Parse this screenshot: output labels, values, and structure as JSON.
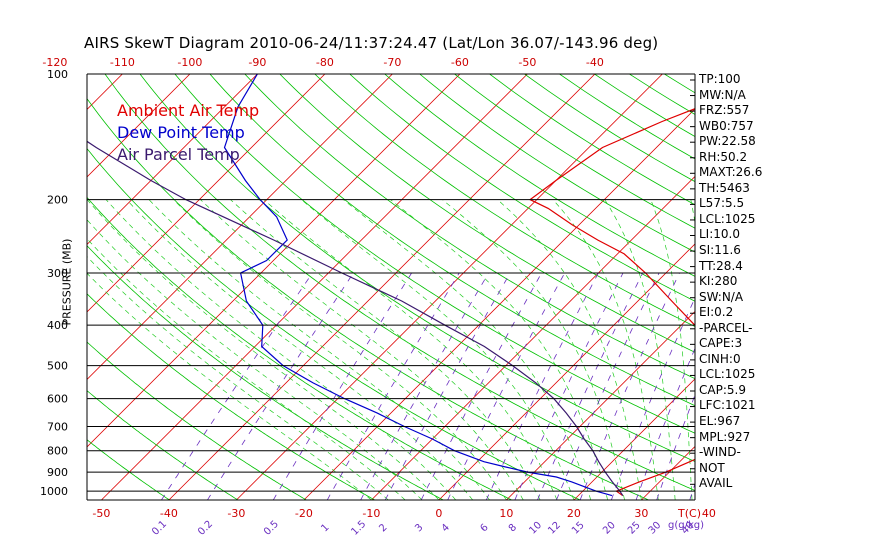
{
  "title": "AIRS SkewT Diagram 2010-06-24/11:37:24.47 (Lat/Lon 36.07/-143.96 deg)",
  "colors": {
    "ambient": "#e00000",
    "dewpoint": "#0000cc",
    "parcel": "#3a1a6e",
    "isotherm": "#dd0000",
    "dry_adiabat": "#00c000",
    "moist_adiabat": "#22cc22",
    "mixing_ratio": "#6a2fc0",
    "axis_text_red": "#cc0000",
    "axis_text_purple": "#6a2fc0"
  },
  "legend": [
    {
      "label": "Ambient Air Temp",
      "color": "#e00000"
    },
    {
      "label": "Dew Point Temp",
      "color": "#0000cc"
    },
    {
      "label": "Air Parcel Temp",
      "color": "#3a1a6e"
    }
  ],
  "stats": [
    "TP:100",
    "MW:N/A",
    "FRZ:557",
    "WB0:757",
    "PW:22.58",
    "RH:50.2",
    "MAXT:26.6",
    "TH:5463",
    "L57:5.5",
    "LCL:1025",
    "LI:10.0",
    "SI:11.6",
    "TT:28.4",
    "KI:280",
    "SW:N/A",
    "EI:0.2",
    "-PARCEL-",
    "CAPE:3",
    "CINH:0",
    "LCL:1025",
    "CAP:5.9",
    "LFC:1021",
    "EL:967",
    "MPL:927",
    "-WIND-",
    "NOT",
    "AVAIL"
  ],
  "chart_data": {
    "type": "line",
    "title": "AIRS SkewT Diagram 2010-06-24/11:37:24.47 (Lat/Lon 36.07/-143.96 deg)",
    "ylabel": "PRESSURE (MB)",
    "xlabel": "T(C)",
    "y_scale": "log",
    "ylim": [
      1050,
      100
    ],
    "y_ticks": [
      1000,
      900,
      800,
      700,
      600,
      500,
      400,
      300,
      200,
      100
    ],
    "top_ticks": [
      "-120",
      "-110",
      "-100",
      "-90",
      "-80",
      "-70",
      "-60",
      "-50",
      "-40"
    ],
    "bottom_temp_ticks": [
      "-50",
      "-40",
      "-30",
      "-20",
      "-10",
      "0",
      "10",
      "20",
      "30",
      "40"
    ],
    "bottom_temp_unit": "T(C)",
    "mixing_ratio_ticks": [
      "0.1",
      "0.2",
      "0.5",
      "1",
      "1.5",
      "2",
      "3",
      "4",
      "6",
      "8",
      "10",
      "12",
      "15",
      "20",
      "25",
      "30",
      "40"
    ],
    "mixing_ratio_unit": "g(g/kg)",
    "series": [
      {
        "name": "Ambient Air Temp",
        "color": "#e00000",
        "points": [
          [
            1025,
            26.6
          ],
          [
            1000,
            25.0
          ],
          [
            950,
            27.0
          ],
          [
            900,
            29.5
          ],
          [
            850,
            31.5
          ],
          [
            800,
            33.5
          ],
          [
            750,
            35.5
          ],
          [
            700,
            37.0
          ],
          [
            650,
            35.0
          ],
          [
            600,
            32.0
          ],
          [
            550,
            29.0
          ],
          [
            500,
            25.0
          ],
          [
            450,
            18.0
          ],
          [
            400,
            12.0
          ],
          [
            350,
            5.0
          ],
          [
            300,
            -3.0
          ],
          [
            270,
            -9.0
          ],
          [
            250,
            -15.0
          ],
          [
            230,
            -21.0
          ],
          [
            210,
            -27.0
          ],
          [
            200,
            -31.0
          ],
          [
            180,
            -30.0
          ],
          [
            150,
            -28.0
          ],
          [
            130,
            -23.0
          ],
          [
            110,
            -16.0
          ],
          [
            100,
            -12.0
          ]
        ]
      },
      {
        "name": "Dew Point Temp",
        "color": "#0000cc",
        "points": [
          [
            1025,
            25.0
          ],
          [
            1000,
            22.0
          ],
          [
            975,
            19.5
          ],
          [
            950,
            17.0
          ],
          [
            925,
            14.0
          ],
          [
            900,
            9.0
          ],
          [
            875,
            5.0
          ],
          [
            850,
            1.0
          ],
          [
            800,
            -5.0
          ],
          [
            750,
            -10.0
          ],
          [
            700,
            -16.0
          ],
          [
            650,
            -22.0
          ],
          [
            600,
            -29.0
          ],
          [
            550,
            -36.0
          ],
          [
            500,
            -43.0
          ],
          [
            450,
            -49.0
          ],
          [
            400,
            -52.0
          ],
          [
            350,
            -58.0
          ],
          [
            300,
            -63.0
          ],
          [
            280,
            -61.0
          ],
          [
            250,
            -61.0
          ],
          [
            220,
            -66.0
          ],
          [
            200,
            -71.0
          ],
          [
            180,
            -76.0
          ],
          [
            150,
            -84.0
          ],
          [
            120,
            -88.0
          ],
          [
            100,
            -90.0
          ]
        ]
      },
      {
        "name": "Air Parcel Temp",
        "color": "#3a1a6e",
        "points": [
          [
            1025,
            26.6
          ],
          [
            1000,
            25.5
          ],
          [
            950,
            23.0
          ],
          [
            900,
            20.5
          ],
          [
            850,
            18.0
          ],
          [
            800,
            15.5
          ],
          [
            750,
            12.5
          ],
          [
            700,
            9.5
          ],
          [
            650,
            6.0
          ],
          [
            600,
            2.0
          ],
          [
            550,
            -3.0
          ],
          [
            500,
            -9.0
          ],
          [
            450,
            -16.0
          ],
          [
            400,
            -25.0
          ],
          [
            350,
            -35.0
          ],
          [
            300,
            -48.0
          ],
          [
            250,
            -63.0
          ],
          [
            200,
            -82.0
          ],
          [
            180,
            -90.0
          ],
          [
            150,
            -103.0
          ],
          [
            120,
            -118.0
          ],
          [
            100,
            -130.0
          ]
        ]
      }
    ]
  }
}
